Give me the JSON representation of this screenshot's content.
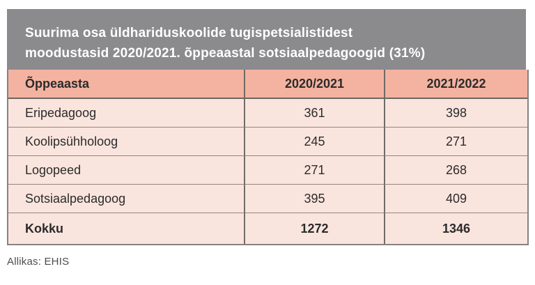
{
  "title": {
    "line1": "Suurima osa üldhariduskoolide tugispetsialistidest",
    "line2": "moodustasid 2020/2021. õppeaastal sotsiaalpedagoogid (31%)"
  },
  "table": {
    "columns": [
      "Õppeaasta",
      "2020/2021",
      "2021/2022"
    ],
    "rows": [
      {
        "label": "Eripedagoog",
        "y2020_2021": "361",
        "y2021_2022": "398"
      },
      {
        "label": "Koolipsühholoog",
        "y2020_2021": "245",
        "y2021_2022": "271"
      },
      {
        "label": "Logopeed",
        "y2020_2021": "271",
        "y2021_2022": "268"
      },
      {
        "label": "Sotsiaalpedagoog",
        "y2020_2021": "395",
        "y2021_2022": "409"
      }
    ],
    "total": {
      "label": "Kokku",
      "y2020_2021": "1272",
      "y2021_2022": "1346"
    }
  },
  "source": "Allikas: EHIS",
  "colors": {
    "title_bg": "#8b8a8c",
    "title_text": "#ffffff",
    "header_row_bg": "#f4b3a0",
    "body_row_bg": "#fae5de",
    "text": "#2b2b2b",
    "grid_dark": "#6f6b68",
    "grid_light": "#94857e",
    "outer_border": "#87827f",
    "source_text": "#4c4c4c"
  },
  "chart_data": {
    "type": "table",
    "title": "Suurima osa üldhariduskoolide tugispetsialistidest moodustasid 2020/2021. õppeaastal sotsiaalpedagoogid (31%)",
    "columns": [
      "Õppeaasta",
      "2020/2021",
      "2021/2022"
    ],
    "rows": [
      [
        "Eripedagoog",
        361,
        398
      ],
      [
        "Koolipsühholoog",
        245,
        271
      ],
      [
        "Logopeed",
        271,
        268
      ],
      [
        "Sotsiaalpedagoog",
        395,
        409
      ],
      [
        "Kokku",
        1272,
        1346
      ]
    ],
    "source": "Allikas: EHIS",
    "legend_position": "none",
    "grid": true
  }
}
